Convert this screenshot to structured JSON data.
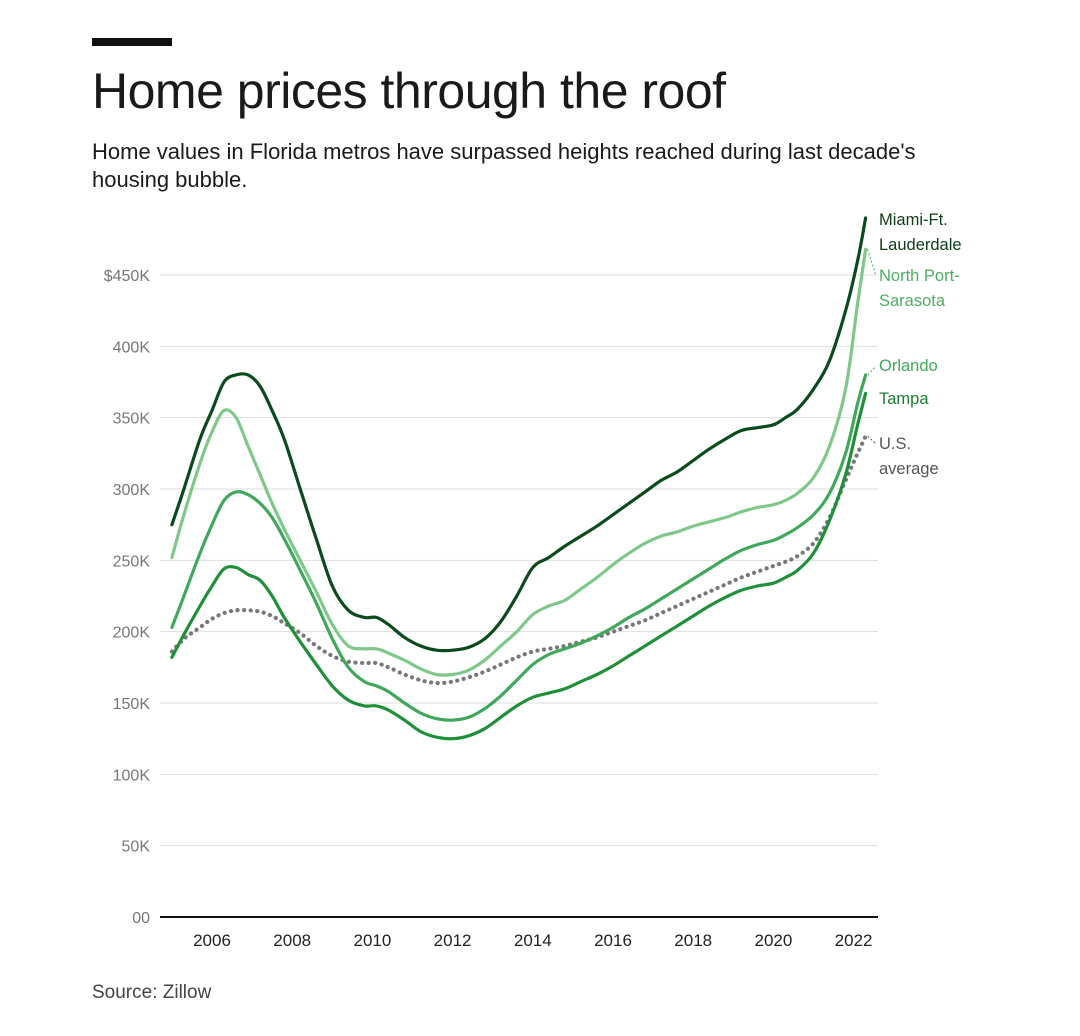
{
  "header": {
    "title": "Home prices through the roof",
    "subtitle": "Home values in Florida metros have surpassed heights reached during last decade's housing bubble."
  },
  "footer": {
    "source": "Source: Zillow"
  },
  "chart_data": {
    "type": "line",
    "title": "Home prices through the roof",
    "xlabel": "",
    "ylabel": "",
    "xlim": [
      2005,
      2022.4
    ],
    "ylim": [
      0,
      490000
    ],
    "y_ticks": [
      {
        "value": 0,
        "label": "00"
      },
      {
        "value": 50000,
        "label": "50K"
      },
      {
        "value": 100000,
        "label": "100K"
      },
      {
        "value": 150000,
        "label": "150K"
      },
      {
        "value": 200000,
        "label": "200K"
      },
      {
        "value": 250000,
        "label": "250K"
      },
      {
        "value": 300000,
        "label": "300K"
      },
      {
        "value": 350000,
        "label": "350K"
      },
      {
        "value": 400000,
        "label": "400K"
      },
      {
        "value": 450000,
        "label": "$450K"
      }
    ],
    "x_ticks": [
      {
        "value": 2006,
        "label": "2006"
      },
      {
        "value": 2008,
        "label": "2008"
      },
      {
        "value": 2010,
        "label": "2010"
      },
      {
        "value": 2012,
        "label": "2012"
      },
      {
        "value": 2014,
        "label": "2014"
      },
      {
        "value": 2016,
        "label": "2016"
      },
      {
        "value": 2018,
        "label": "2018"
      },
      {
        "value": 2020,
        "label": "2020"
      },
      {
        "value": 2022,
        "label": "2022"
      }
    ],
    "grid": true,
    "legend": "direct labels at right end of lines",
    "series": [
      {
        "name": "Miami-Ft. Lauderdale",
        "label_lines": [
          "Miami-Ft.",
          "Lauderdale"
        ],
        "color": "#0b4a1c",
        "dotted": false,
        "x": [
          2005,
          2005.3,
          2005.7,
          2006,
          2006.3,
          2006.6,
          2006.9,
          2007.2,
          2007.5,
          2007.8,
          2008.2,
          2008.6,
          2009,
          2009.4,
          2009.8,
          2010.1,
          2010.4,
          2010.8,
          2011.2,
          2011.6,
          2012,
          2012.4,
          2012.8,
          2013.2,
          2013.6,
          2014,
          2014.4,
          2014.8,
          2015.2,
          2015.6,
          2016,
          2016.4,
          2016.8,
          2017.2,
          2017.6,
          2018,
          2018.4,
          2018.8,
          2019.2,
          2019.6,
          2020,
          2020.3,
          2020.6,
          2021,
          2021.4,
          2021.8,
          2022.1,
          2022.3
        ],
        "values": [
          275000,
          300000,
          335000,
          355000,
          375000,
          380000,
          380000,
          372000,
          355000,
          335000,
          300000,
          265000,
          232000,
          215000,
          210000,
          210000,
          205000,
          196000,
          190000,
          187000,
          187000,
          189000,
          195000,
          207000,
          225000,
          245000,
          252000,
          260000,
          267000,
          274000,
          282000,
          290000,
          298000,
          306000,
          312000,
          320000,
          328000,
          335000,
          341000,
          343000,
          345000,
          350000,
          356000,
          370000,
          390000,
          425000,
          460000,
          490000
        ]
      },
      {
        "name": "North Port-Sarasota",
        "label_lines": [
          "North Port-",
          "Sarasota"
        ],
        "color": "#7fc88a",
        "dotted": false,
        "x": [
          2005,
          2005.3,
          2005.7,
          2006,
          2006.3,
          2006.6,
          2006.9,
          2007.2,
          2007.5,
          2007.8,
          2008.2,
          2008.6,
          2009,
          2009.4,
          2009.8,
          2010.1,
          2010.4,
          2010.8,
          2011.2,
          2011.6,
          2012,
          2012.4,
          2012.8,
          2013.2,
          2013.6,
          2014,
          2014.4,
          2014.8,
          2015.2,
          2015.6,
          2016,
          2016.4,
          2016.8,
          2017.2,
          2017.6,
          2018,
          2018.4,
          2018.8,
          2019.2,
          2019.6,
          2020,
          2020.3,
          2020.6,
          2021,
          2021.4,
          2021.8,
          2022.1,
          2022.3
        ],
        "values": [
          252000,
          282000,
          318000,
          340000,
          355000,
          350000,
          330000,
          310000,
          290000,
          272000,
          250000,
          228000,
          205000,
          190000,
          188000,
          188000,
          185000,
          180000,
          174000,
          170000,
          170000,
          173000,
          180000,
          190000,
          200000,
          212000,
          218000,
          222000,
          230000,
          238000,
          247000,
          255000,
          262000,
          267000,
          270000,
          274000,
          277000,
          280000,
          284000,
          287000,
          289000,
          292000,
          297000,
          308000,
          330000,
          370000,
          430000,
          468000
        ]
      },
      {
        "name": "Orlando",
        "label_lines": [
          "Orlando"
        ],
        "color": "#3fa85a",
        "dotted": false,
        "x": [
          2005,
          2005.3,
          2005.7,
          2006,
          2006.3,
          2006.6,
          2006.9,
          2007.2,
          2007.5,
          2007.8,
          2008.2,
          2008.6,
          2009,
          2009.4,
          2009.8,
          2010.1,
          2010.4,
          2010.8,
          2011.2,
          2011.6,
          2012,
          2012.4,
          2012.8,
          2013.2,
          2013.6,
          2014,
          2014.4,
          2014.8,
          2015.2,
          2015.6,
          2016,
          2016.4,
          2016.8,
          2017.2,
          2017.6,
          2018,
          2018.4,
          2018.8,
          2019.2,
          2019.6,
          2020,
          2020.3,
          2020.6,
          2021,
          2021.4,
          2021.8,
          2022.1,
          2022.3
        ],
        "values": [
          203000,
          225000,
          255000,
          275000,
          292000,
          298000,
          296000,
          290000,
          280000,
          265000,
          243000,
          220000,
          195000,
          175000,
          165000,
          162000,
          158000,
          150000,
          143000,
          139000,
          138000,
          140000,
          146000,
          155000,
          166000,
          177000,
          184000,
          188000,
          192000,
          197000,
          203000,
          210000,
          216000,
          223000,
          230000,
          237000,
          244000,
          251000,
          257000,
          261000,
          264000,
          268000,
          273000,
          282000,
          297000,
          325000,
          360000,
          380000
        ]
      },
      {
        "name": "Tampa",
        "label_lines": [
          "Tampa"
        ],
        "color": "#1f8f3a",
        "dotted": false,
        "x": [
          2005,
          2005.3,
          2005.7,
          2006,
          2006.3,
          2006.6,
          2006.9,
          2007.2,
          2007.5,
          2007.8,
          2008.2,
          2008.6,
          2009,
          2009.4,
          2009.8,
          2010.1,
          2010.4,
          2010.8,
          2011.2,
          2011.6,
          2012,
          2012.4,
          2012.8,
          2013.2,
          2013.6,
          2014,
          2014.4,
          2014.8,
          2015.2,
          2015.6,
          2016,
          2016.4,
          2016.8,
          2017.2,
          2017.6,
          2018,
          2018.4,
          2018.8,
          2019.2,
          2019.6,
          2020,
          2020.3,
          2020.6,
          2021,
          2021.4,
          2021.8,
          2022.1,
          2022.3
        ],
        "values": [
          182000,
          198000,
          218000,
          232000,
          244000,
          245000,
          240000,
          236000,
          225000,
          210000,
          193000,
          177000,
          162000,
          152000,
          148000,
          148000,
          145000,
          138000,
          130000,
          126000,
          125000,
          127000,
          132000,
          140000,
          148000,
          154000,
          157000,
          160000,
          165000,
          170000,
          176000,
          183000,
          190000,
          197000,
          204000,
          211000,
          218000,
          224000,
          229000,
          232000,
          234000,
          238000,
          243000,
          255000,
          278000,
          310000,
          345000,
          367000
        ]
      },
      {
        "name": "U.S. average",
        "label_lines": [
          "U.S.",
          "average"
        ],
        "color": "#77777c",
        "dotted": true,
        "x": [
          2005,
          2005.3,
          2005.7,
          2006,
          2006.3,
          2006.6,
          2006.9,
          2007.2,
          2007.5,
          2007.8,
          2008.2,
          2008.6,
          2009,
          2009.4,
          2009.8,
          2010.1,
          2010.4,
          2010.8,
          2011.2,
          2011.6,
          2012,
          2012.4,
          2012.8,
          2013.2,
          2013.6,
          2014,
          2014.4,
          2014.8,
          2015.2,
          2015.6,
          2016,
          2016.4,
          2016.8,
          2017.2,
          2017.6,
          2018,
          2018.4,
          2018.8,
          2019.2,
          2019.6,
          2020,
          2020.3,
          2020.6,
          2021,
          2021.4,
          2021.8,
          2022.1,
          2022.3
        ],
        "values": [
          186000,
          195000,
          203000,
          209000,
          213000,
          215000,
          215000,
          214000,
          211000,
          206000,
          199000,
          190000,
          183000,
          179000,
          178000,
          178000,
          175000,
          170000,
          166000,
          164000,
          165000,
          168000,
          172000,
          177000,
          182000,
          186000,
          188000,
          190000,
          193000,
          196000,
          200000,
          204000,
          208000,
          213000,
          218000,
          223000,
          228000,
          233000,
          238000,
          242000,
          246000,
          249000,
          253000,
          262000,
          280000,
          306000,
          325000,
          337000
        ]
      }
    ]
  }
}
